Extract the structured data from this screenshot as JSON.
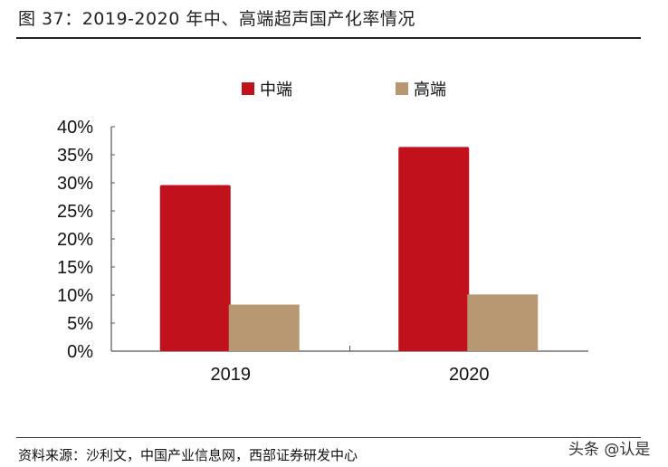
{
  "title": "图 37：2019-2020 年中、高端超声国产化率情况",
  "source": "资料来源：沙利文，中国产业信息网，西部证券研发中心",
  "watermark": "头条 @认是",
  "chart_data": {
    "type": "bar",
    "categories": [
      "2019",
      "2020"
    ],
    "series": [
      {
        "name": "中端",
        "values": [
          29.6,
          36.4
        ],
        "color": "#C0111C"
      },
      {
        "name": "高端",
        "values": [
          8.3,
          10.1
        ],
        "color": "#B89873"
      }
    ],
    "yticks": [
      "0%",
      "5%",
      "10%",
      "15%",
      "20%",
      "25%",
      "30%",
      "35%",
      "40%"
    ],
    "ylim": [
      0,
      40
    ],
    "yunit": "%",
    "legend": "top",
    "grid": false
  }
}
